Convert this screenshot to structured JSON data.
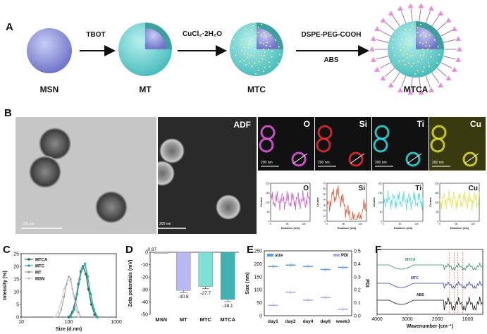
{
  "panel_a": {
    "label": "A",
    "steps": [
      {
        "name": "MSN"
      },
      {
        "name": "MT"
      },
      {
        "name": "MTC"
      },
      {
        "name": "MTCA"
      }
    ],
    "arrows": [
      {
        "label": "TBOT"
      },
      {
        "label": "CuCl₂·2H₂O"
      },
      {
        "label_top": "DSPE-PEG-COOH",
        "label_bottom": "ABS"
      }
    ],
    "colors": {
      "core": "#8e95dc",
      "shell": "#6fcfcf",
      "dots": "#f5f27a",
      "antenna": "#e58fe0"
    }
  },
  "panel_b": {
    "label": "B",
    "tem_scale": "200 nm",
    "adf_label": "ADF",
    "adf_scale": "200 nm",
    "maps": [
      {
        "element": "O",
        "color": "#d65ad6",
        "scale": "200 nm"
      },
      {
        "element": "Si",
        "color": "#d82c2c",
        "scale": "200 nm"
      },
      {
        "element": "Ti",
        "color": "#2fd3d3",
        "scale": "200 nm"
      },
      {
        "element": "Cu",
        "color": "#d6d62a",
        "scale": "200 nm"
      }
    ],
    "line_profiles": {
      "ylabel": "Counts",
      "xlabel": "Distance (nm)",
      "profiles": [
        {
          "element": "O",
          "yticks": [
            "0",
            "50",
            "100",
            "150",
            "200"
          ],
          "xticks": [
            "0",
            "50",
            "100"
          ],
          "color": "#c85ac8"
        },
        {
          "element": "Si",
          "yticks": [
            "0",
            "10",
            "20",
            "30",
            "40",
            "50",
            "60",
            "70"
          ],
          "xticks": [
            "0",
            "50",
            "100"
          ],
          "color": "#d9532e"
        },
        {
          "element": "Ti",
          "yticks": [
            "0",
            "50",
            "100",
            "150",
            "200"
          ],
          "xticks": [
            "0",
            "50",
            "100"
          ],
          "color": "#4fd8e0"
        },
        {
          "element": "Cu",
          "yticks": [
            "0",
            "50",
            "100",
            "150",
            "200"
          ],
          "xticks": [
            "0",
            "50",
            "100"
          ],
          "color": "#e6e04a"
        }
      ]
    }
  },
  "chart_data": [
    {
      "panel": "C",
      "type": "line",
      "xlabel": "Size (d.nm)",
      "ylabel": "Intensity (%)",
      "xscale": "log",
      "xlim": [
        10,
        1000
      ],
      "ylim": [
        0,
        25
      ],
      "xticks": [
        "10",
        "100",
        "1000"
      ],
      "yticks": [
        "0",
        "5",
        "10",
        "15",
        "20",
        "25"
      ],
      "legend": "top-left",
      "series": [
        {
          "name": "MTCA",
          "color": "#1f6e6e",
          "x": [
            100,
            120,
            140,
            160,
            180,
            200,
            230,
            260,
            300,
            350,
            400
          ],
          "y": [
            0,
            2,
            7,
            13,
            18,
            20,
            17,
            11,
            5,
            1,
            0
          ]
        },
        {
          "name": "MTC",
          "color": "#3aa6a6",
          "x": [
            110,
            130,
            150,
            170,
            190,
            220,
            250,
            290,
            340,
            400
          ],
          "y": [
            0,
            3,
            9,
            15,
            19,
            21,
            16,
            9,
            3,
            0
          ]
        },
        {
          "name": "MT",
          "color": "#9a9a9a",
          "x": [
            60,
            70,
            80,
            90,
            100,
            110,
            120,
            140,
            160,
            180
          ],
          "y": [
            0,
            3,
            8,
            13,
            16,
            15,
            11,
            6,
            2,
            0
          ]
        },
        {
          "name": "MSN",
          "color": "#c8c8c8",
          "x": [
            50,
            60,
            70,
            80,
            95,
            110,
            125,
            140,
            160
          ],
          "y": [
            0,
            2,
            6,
            11,
            15,
            14,
            9,
            4,
            0
          ]
        }
      ]
    },
    {
      "panel": "D",
      "type": "bar",
      "ylabel": "Zeta potentials (mV)",
      "ylim": [
        -50,
        0
      ],
      "yticks": [
        "0",
        "-10",
        "-20",
        "-30",
        "-40",
        "-50"
      ],
      "categories": [
        "MSN",
        "MT",
        "MTC",
        "MTCA"
      ],
      "values": [
        -0.97,
        -30.8,
        -27.7,
        -38.1
      ],
      "value_labels": [
        "-0.97",
        "-30.8",
        "-27.7",
        "-38.1"
      ],
      "colors": [
        "#c9c9c9",
        "#b7b9f0",
        "#7fe0d6",
        "#3fb2b2"
      ]
    },
    {
      "panel": "E",
      "type": "scatter",
      "ylabel_left": "Size (nm)",
      "ylabel_right": "PDI",
      "ylim_left": [
        0,
        250
      ],
      "ylim_right": [
        0,
        0.5
      ],
      "yticks_left": [
        "0",
        "50",
        "100",
        "150",
        "200",
        "250"
      ],
      "yticks_right": [
        "0.0",
        "0.1",
        "0.2",
        "0.3",
        "0.4",
        "0.5"
      ],
      "categories": [
        "day1",
        "day2",
        "day4",
        "day6",
        "week3"
      ],
      "series": [
        {
          "name": "size",
          "axis": "left",
          "color": "#5a9be0",
          "values": [
            190,
            195,
            190,
            178,
            186
          ]
        },
        {
          "name": "PDI",
          "axis": "right",
          "color": "#b0a8e6",
          "values": [
            0.08,
            0.18,
            0.12,
            0.14,
            0.05
          ]
        }
      ]
    },
    {
      "panel": "F",
      "type": "line",
      "xlabel": "Wavenumber (cm⁻¹)",
      "xlim": [
        4000,
        500
      ],
      "xticks": [
        "4000",
        "3000",
        "2000",
        "1000"
      ],
      "series": [
        {
          "name": "MTCA",
          "color": "#2e8c6a"
        },
        {
          "name": "MTC",
          "color": "#2e3ea6"
        },
        {
          "name": "ABS",
          "color": "#111111"
        }
      ],
      "markers": [
        1600,
        1450,
        1330,
        1160
      ]
    }
  ],
  "panel_labels": {
    "c": "C",
    "d": "D",
    "e": "E",
    "f": "F"
  }
}
